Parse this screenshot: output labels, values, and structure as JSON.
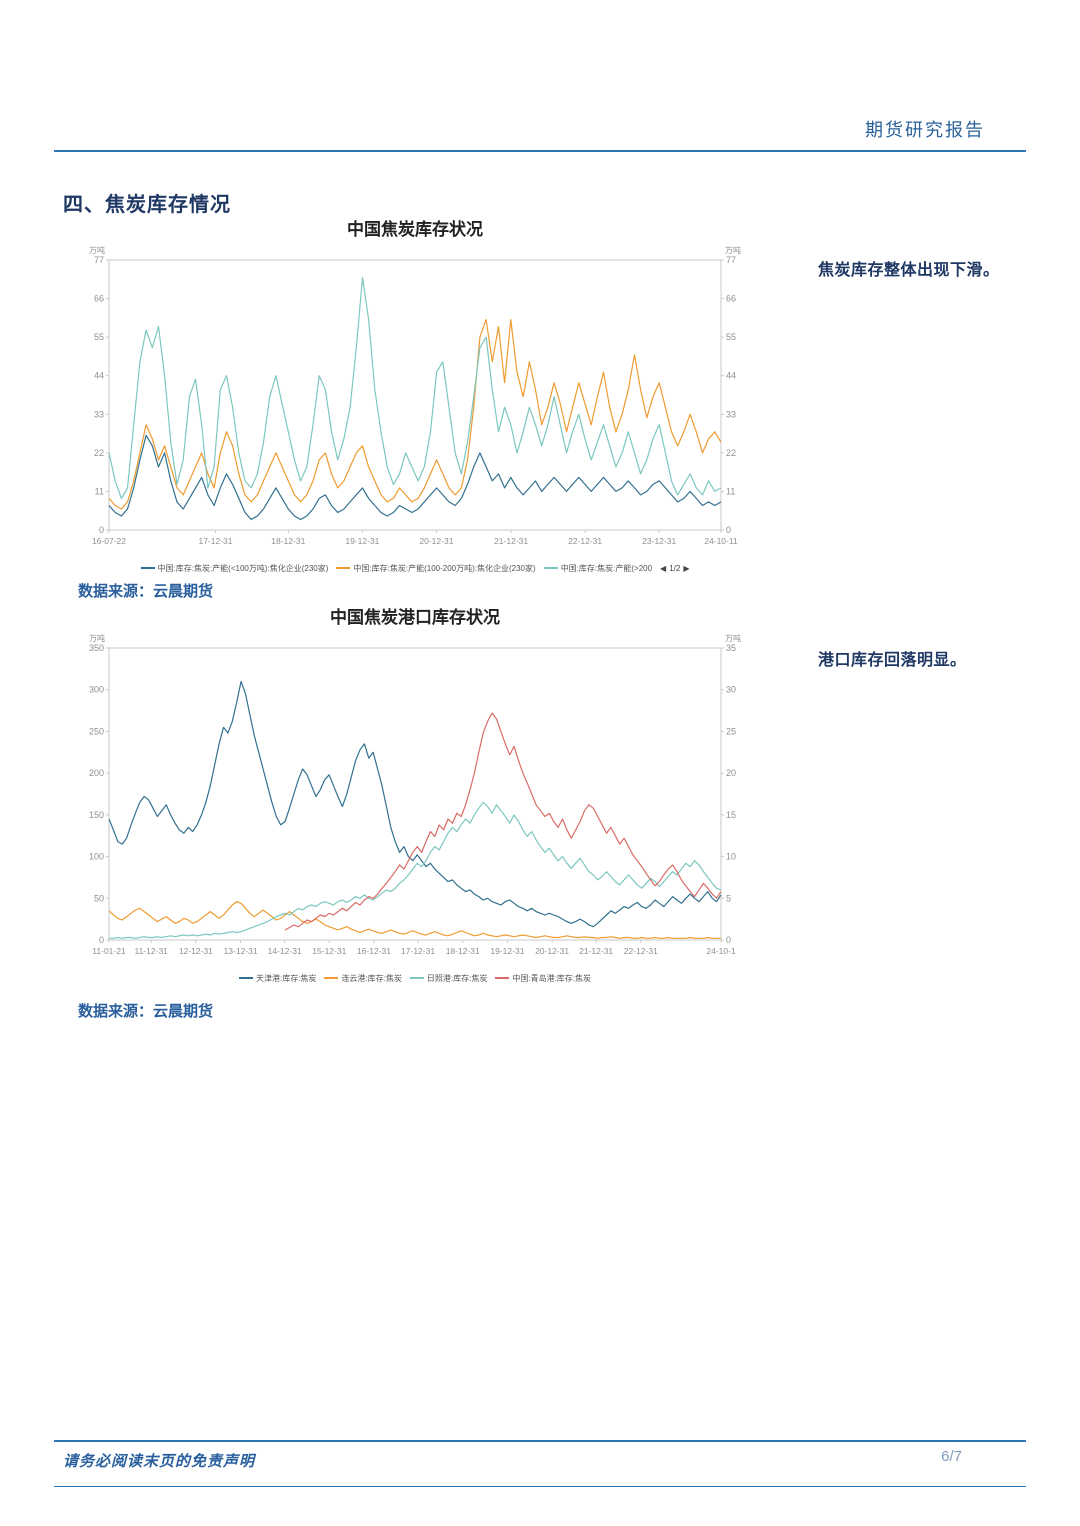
{
  "page": {
    "header_title": "期货研究报告",
    "section_title": "四、焦炭库存情况",
    "footer_disclaimer": "请务必阅读末页的免责声明",
    "page_number": "6/7"
  },
  "annotations": {
    "chart1_note": "焦炭库存整体出现下滑。",
    "chart2_note": "港口库存回落明显。"
  },
  "sources": {
    "chart1": "数据来源：云晨期货",
    "chart2": "数据来源：云晨期货"
  },
  "colors": {
    "accent_blue": "#2E74B5",
    "navy_text": "#1F3864",
    "link_blue": "#2A5F9E",
    "series_blue": "#31708E",
    "series_orange": "#EF9B2F",
    "series_teal": "#7CC7C0",
    "series_red": "#D96B66"
  },
  "chart_data": [
    {
      "type": "line",
      "title": "中国焦炭库存状况",
      "unit_left": "万吨",
      "unit_right": "万吨",
      "ylim": [
        0,
        77
      ],
      "yticks": [
        0,
        11,
        22,
        33,
        44,
        55,
        66,
        77
      ],
      "xtick_labels": [
        "16-07-22",
        "17-12-31",
        "18-12-31",
        "19-12-31",
        "20-12-31",
        "21-12-31",
        "22-12-31",
        "23-12-31",
        "24-10-11"
      ],
      "xtick_pos": [
        0,
        0.174,
        0.293,
        0.414,
        0.535,
        0.657,
        0.778,
        0.899,
        1.0
      ],
      "grid": false,
      "legend_position": "bottom",
      "legend_pagination": "1/2",
      "series": [
        {
          "name": "中国:库存:焦炭:产能(<100万吨):焦化企业(230家)",
          "color": "#31708E",
          "values": [
            7,
            5,
            4,
            6,
            12,
            20,
            27,
            24,
            18,
            22,
            14,
            8,
            6,
            9,
            12,
            15,
            10,
            7,
            12,
            16,
            13,
            9,
            5,
            3,
            4,
            6,
            9,
            12,
            9,
            6,
            4,
            3,
            4,
            6,
            9,
            10,
            7,
            5,
            6,
            8,
            10,
            12,
            9,
            7,
            5,
            4,
            5,
            7,
            6,
            5,
            6,
            8,
            10,
            12,
            10,
            8,
            7,
            9,
            13,
            18,
            22,
            18,
            14,
            16,
            12,
            15,
            12,
            10,
            12,
            14,
            11,
            13,
            15,
            13,
            11,
            13,
            15,
            13,
            11,
            13,
            15,
            13,
            11,
            12,
            14,
            12,
            10,
            11,
            13,
            14,
            12,
            10,
            8,
            9,
            11,
            9,
            7,
            8,
            7,
            8
          ]
        },
        {
          "name": "中国:库存:焦炭:产能(100-200万吨):焦化企业(230家)",
          "color": "#EF9B2F",
          "values": [
            9,
            7,
            6,
            8,
            14,
            22,
            30,
            26,
            20,
            24,
            18,
            12,
            10,
            14,
            18,
            22,
            16,
            12,
            22,
            28,
            24,
            16,
            10,
            8,
            10,
            14,
            18,
            22,
            18,
            14,
            10,
            8,
            10,
            14,
            20,
            22,
            16,
            12,
            14,
            18,
            22,
            24,
            18,
            14,
            10,
            8,
            9,
            12,
            10,
            8,
            9,
            12,
            16,
            20,
            16,
            12,
            10,
            12,
            20,
            35,
            55,
            60,
            48,
            58,
            42,
            60,
            45,
            38,
            48,
            40,
            30,
            35,
            42,
            36,
            28,
            35,
            42,
            36,
            30,
            38,
            45,
            35,
            28,
            33,
            40,
            50,
            40,
            32,
            38,
            42,
            35,
            28,
            24,
            28,
            33,
            28,
            22,
            26,
            28,
            25
          ]
        },
        {
          "name": "中国:库存:焦炭:产能(>200",
          "color": "#7CC7C0",
          "values": [
            22,
            14,
            9,
            12,
            30,
            48,
            57,
            52,
            58,
            44,
            25,
            13,
            20,
            38,
            43,
            30,
            12,
            18,
            40,
            44,
            35,
            22,
            14,
            12,
            16,
            25,
            38,
            44,
            36,
            28,
            20,
            14,
            18,
            30,
            44,
            40,
            28,
            20,
            26,
            35,
            52,
            72,
            60,
            40,
            28,
            18,
            13,
            16,
            22,
            18,
            14,
            18,
            28,
            45,
            48,
            35,
            22,
            16,
            25,
            38,
            52,
            55,
            40,
            28,
            35,
            30,
            22,
            28,
            35,
            30,
            24,
            30,
            38,
            30,
            22,
            28,
            33,
            26,
            20,
            25,
            30,
            24,
            18,
            22,
            28,
            22,
            16,
            20,
            26,
            30,
            22,
            14,
            10,
            13,
            16,
            12,
            10,
            14,
            11,
            12
          ]
        }
      ]
    },
    {
      "type": "line",
      "title": "中国焦炭港口库存状况",
      "unit_left": "万吨",
      "unit_right": "万吨",
      "ylim": [
        0,
        350
      ],
      "yticks": [
        0,
        50,
        100,
        150,
        200,
        250,
        300,
        350
      ],
      "yticks_right": [
        "0",
        "5",
        "10",
        "15",
        "20",
        "25",
        "30",
        "35"
      ],
      "xtick_labels": [
        "11-01-21",
        "11-12-31",
        "12-12-31",
        "13-12-31",
        "14-12-31",
        "15-12-31",
        "16-12-31",
        "17-12-31",
        "18-12-31",
        "19-12-31",
        "20-12-31",
        "21-12-31",
        "22-12-31",
        "24-10-1"
      ],
      "xtick_pos": [
        0,
        0.069,
        0.142,
        0.215,
        0.287,
        0.36,
        0.433,
        0.505,
        0.578,
        0.651,
        0.724,
        0.796,
        0.869,
        1.0
      ],
      "grid": false,
      "legend_position": "bottom",
      "series": [
        {
          "name": "天津港:库存:焦炭",
          "color": "#31708E",
          "values": [
            145,
            132,
            118,
            115,
            122,
            138,
            152,
            165,
            172,
            168,
            158,
            148,
            155,
            162,
            150,
            140,
            132,
            128,
            135,
            130,
            138,
            150,
            165,
            185,
            210,
            235,
            255,
            248,
            262,
            285,
            310,
            295,
            270,
            245,
            225,
            205,
            185,
            165,
            148,
            138,
            142,
            158,
            175,
            192,
            205,
            198,
            185,
            172,
            180,
            192,
            198,
            185,
            172,
            160,
            175,
            195,
            215,
            228,
            235,
            218,
            225,
            205,
            185,
            160,
            135,
            118,
            105,
            112,
            100,
            95,
            102,
            95,
            88,
            92,
            85,
            80,
            75,
            70,
            72,
            66,
            62,
            58,
            60,
            55,
            52,
            48,
            50,
            46,
            44,
            42,
            46,
            48,
            44,
            40,
            38,
            35,
            38,
            34,
            32,
            30,
            32,
            30,
            28,
            25,
            22,
            20,
            22,
            25,
            22,
            18,
            16,
            20,
            25,
            30,
            35,
            32,
            36,
            40,
            38,
            42,
            45,
            40,
            38,
            42,
            48,
            44,
            40,
            46,
            52,
            48,
            44,
            50,
            55,
            50,
            46,
            52,
            58,
            50,
            46,
            54
          ]
        },
        {
          "name": "连云港:库存:焦炭",
          "color": "#EF9B2F",
          "values": [
            35,
            30,
            26,
            24,
            28,
            32,
            36,
            38,
            34,
            30,
            26,
            22,
            25,
            28,
            24,
            20,
            22,
            26,
            24,
            20,
            22,
            26,
            30,
            34,
            30,
            26,
            30,
            36,
            42,
            46,
            44,
            38,
            32,
            28,
            32,
            36,
            32,
            28,
            24,
            26,
            30,
            34,
            30,
            26,
            22,
            20,
            22,
            25,
            22,
            18,
            16,
            14,
            12,
            14,
            16,
            13,
            11,
            9,
            11,
            13,
            11,
            9,
            8,
            10,
            12,
            10,
            8,
            7,
            9,
            11,
            9,
            7,
            6,
            8,
            10,
            8,
            6,
            5,
            7,
            9,
            11,
            9,
            7,
            5,
            6,
            8,
            6,
            5,
            4,
            5,
            6,
            5,
            4,
            5,
            6,
            5,
            4,
            3,
            4,
            5,
            4,
            3,
            3,
            4,
            5,
            4,
            3,
            3,
            4,
            3,
            3,
            2,
            3,
            3,
            4,
            3,
            2,
            3,
            3,
            2,
            2,
            3,
            2,
            2,
            3,
            2,
            2,
            3,
            2,
            2,
            2,
            2,
            3,
            2,
            2,
            2,
            3,
            2,
            2,
            2
          ]
        },
        {
          "name": "日照港:库存:焦炭",
          "color": "#7CC7C0",
          "values": [
            2,
            2,
            3,
            2,
            3,
            3,
            2,
            3,
            4,
            3,
            3,
            4,
            3,
            4,
            5,
            4,
            5,
            6,
            5,
            6,
            5,
            6,
            7,
            6,
            8,
            7,
            8,
            9,
            10,
            9,
            10,
            12,
            14,
            16,
            18,
            20,
            22,
            25,
            28,
            30,
            32,
            30,
            34,
            38,
            36,
            40,
            42,
            40,
            44,
            46,
            44,
            42,
            46,
            48,
            45,
            48,
            52,
            50,
            54,
            50,
            48,
            52,
            56,
            60,
            58,
            62,
            68,
            72,
            78,
            85,
            92,
            88,
            95,
            105,
            112,
            108,
            118,
            128,
            135,
            130,
            138,
            145,
            140,
            150,
            158,
            165,
            160,
            152,
            162,
            155,
            148,
            140,
            150,
            142,
            132,
            124,
            130,
            120,
            112,
            105,
            110,
            102,
            95,
            100,
            92,
            86,
            92,
            98,
            90,
            82,
            78,
            72,
            76,
            82,
            76,
            70,
            66,
            72,
            78,
            72,
            66,
            62,
            68,
            74,
            70,
            64,
            70,
            76,
            82,
            78,
            85,
            92,
            88,
            95,
            90,
            82,
            75,
            68,
            62,
            60
          ]
        },
        {
          "name": "中国:青岛港:库存:焦炭",
          "color": "#D96B66",
          "values": [
            null,
            null,
            null,
            null,
            null,
            null,
            null,
            null,
            null,
            null,
            null,
            null,
            null,
            null,
            null,
            null,
            null,
            null,
            null,
            null,
            null,
            null,
            null,
            null,
            null,
            null,
            null,
            null,
            null,
            null,
            null,
            null,
            null,
            null,
            null,
            null,
            null,
            null,
            null,
            null,
            12,
            15,
            18,
            16,
            20,
            24,
            22,
            26,
            30,
            28,
            32,
            30,
            34,
            38,
            35,
            40,
            45,
            42,
            48,
            52,
            50,
            55,
            62,
            68,
            75,
            82,
            90,
            85,
            95,
            105,
            112,
            105,
            118,
            130,
            124,
            138,
            132,
            145,
            140,
            152,
            148,
            162,
            180,
            200,
            225,
            248,
            262,
            272,
            265,
            250,
            235,
            222,
            232,
            215,
            200,
            188,
            175,
            162,
            155,
            148,
            152,
            142,
            135,
            145,
            132,
            122,
            132,
            142,
            155,
            162,
            158,
            148,
            138,
            128,
            135,
            125,
            115,
            122,
            112,
            102,
            95,
            88,
            80,
            72,
            65,
            70,
            78,
            85,
            90,
            82,
            72,
            65,
            58,
            52,
            60,
            68,
            62,
            55,
            50,
            58
          ]
        }
      ]
    }
  ]
}
